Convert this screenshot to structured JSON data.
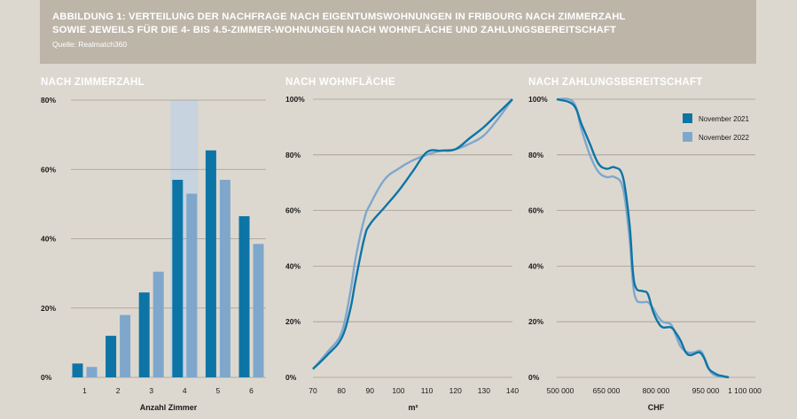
{
  "header": {
    "line1": "ABBILDUNG 1: VERTEILUNG DER NACHFRAGE NACH EIGENTUMSWOHNUNGEN IN FRIBOURG NACH ZIMMERZAHL",
    "line2": "SOWIE JEWEILS FÜR DIE 4- BIS 4.5-ZIMMER-WOHNUNGEN NACH WOHNFLÄCHE UND ZAHLUNGSBEREITSCHAFT",
    "source": "Quelle: Realmatch360"
  },
  "colors": {
    "dark": "#0d75a6",
    "light": "#7fa7cc",
    "highlight": "#c7d3df",
    "grid": "#a39c91"
  },
  "legend": [
    "November 2021",
    "November 2022"
  ],
  "chart_data": [
    {
      "type": "bar",
      "title": "NACH ZIMMERZAHL",
      "xlabel": "Anzahl Zimmer",
      "categories": [
        "1",
        "2",
        "3",
        "4",
        "5",
        "6"
      ],
      "highlight_category": "4",
      "yticks": [
        "0%",
        "20%",
        "40%",
        "60%",
        "80%"
      ],
      "ylim": [
        0,
        80
      ],
      "series": [
        {
          "name": "November 2021",
          "values": [
            4,
            12,
            24.5,
            57,
            65.5,
            46.5
          ]
        },
        {
          "name": "November 2022",
          "values": [
            3,
            18,
            30.5,
            53,
            57,
            38.5
          ]
        }
      ]
    },
    {
      "type": "line",
      "title": "NACH WOHNFLÄCHE",
      "xlabel": "m²",
      "xticks": [
        "70",
        "80",
        "90",
        "100",
        "110",
        "120",
        "130",
        "140"
      ],
      "yticks": [
        "0%",
        "20%",
        "40%",
        "60%",
        "80%",
        "100%"
      ],
      "xlim": [
        70,
        140
      ],
      "ylim": [
        0,
        100
      ],
      "series": [
        {
          "name": "November 2021",
          "points": [
            [
              70,
              3
            ],
            [
              75,
              8
            ],
            [
              80,
              14
            ],
            [
              83,
              24
            ],
            [
              85,
              35
            ],
            [
              88,
              50
            ],
            [
              90,
              55
            ],
            [
              95,
              61
            ],
            [
              100,
              67
            ],
            [
              105,
              74
            ],
            [
              110,
              81
            ],
            [
              115,
              81.5
            ],
            [
              120,
              82
            ],
            [
              125,
              86
            ],
            [
              130,
              90
            ],
            [
              135,
              95
            ],
            [
              140,
              100
            ]
          ]
        },
        {
          "name": "November 2022",
          "points": [
            [
              70,
              3
            ],
            [
              75,
              9
            ],
            [
              80,
              16
            ],
            [
              83,
              30
            ],
            [
              85,
              43
            ],
            [
              88,
              57
            ],
            [
              90,
              62
            ],
            [
              95,
              71
            ],
            [
              100,
              75
            ],
            [
              105,
              78
            ],
            [
              110,
              80
            ],
            [
              115,
              81.5
            ],
            [
              120,
              82
            ],
            [
              125,
              84
            ],
            [
              130,
              87
            ],
            [
              135,
              93
            ],
            [
              140,
              100
            ]
          ]
        }
      ]
    },
    {
      "type": "line",
      "title": "NACH ZAHLUNGSBEREITSCHAFT",
      "xlabel": "CHF",
      "xticks": [
        "500 000",
        "650 000",
        "800 000",
        "950 000",
        "1 100 000"
      ],
      "xtick_values": [
        500000,
        650000,
        800000,
        950000,
        1100000
      ],
      "yticks": [
        "0%",
        "20%",
        "40%",
        "60%",
        "80%",
        "100%"
      ],
      "xlim": [
        500000,
        1100000
      ],
      "ylim": [
        0,
        100
      ],
      "series": [
        {
          "name": "November 2021",
          "points": [
            [
              500000,
              100
            ],
            [
              550000,
              98
            ],
            [
              575000,
              91
            ],
            [
              600000,
              84
            ],
            [
              625000,
              77
            ],
            [
              650000,
              75
            ],
            [
              675000,
              75.5
            ],
            [
              700000,
              72
            ],
            [
              720000,
              55
            ],
            [
              730000,
              38
            ],
            [
              740000,
              32
            ],
            [
              760000,
              31
            ],
            [
              775000,
              30
            ],
            [
              790000,
              24
            ],
            [
              805000,
              20
            ],
            [
              820000,
              18
            ],
            [
              845000,
              18
            ],
            [
              860000,
              16
            ],
            [
              875000,
              13
            ],
            [
              890000,
              9
            ],
            [
              905000,
              8
            ],
            [
              930000,
              9
            ],
            [
              945000,
              7
            ],
            [
              960000,
              3
            ],
            [
              985000,
              1
            ],
            [
              1000000,
              0.5
            ],
            [
              1020000,
              0
            ]
          ]
        },
        {
          "name": "November 2022",
          "points": [
            [
              500000,
              100
            ],
            [
              550000,
              99
            ],
            [
              575000,
              89
            ],
            [
              600000,
              80
            ],
            [
              625000,
              74
            ],
            [
              650000,
              72
            ],
            [
              675000,
              72
            ],
            [
              700000,
              68
            ],
            [
              720000,
              50
            ],
            [
              730000,
              34
            ],
            [
              740000,
              28
            ],
            [
              755000,
              27
            ],
            [
              775000,
              27
            ],
            [
              790000,
              25
            ],
            [
              805000,
              22
            ],
            [
              820000,
              20
            ],
            [
              845000,
              19
            ],
            [
              860000,
              15
            ],
            [
              875000,
              11
            ],
            [
              895000,
              9
            ],
            [
              915000,
              9
            ],
            [
              935000,
              9.5
            ],
            [
              950000,
              6
            ],
            [
              965000,
              2
            ],
            [
              985000,
              0.5
            ],
            [
              1020000,
              0
            ]
          ]
        }
      ]
    }
  ]
}
